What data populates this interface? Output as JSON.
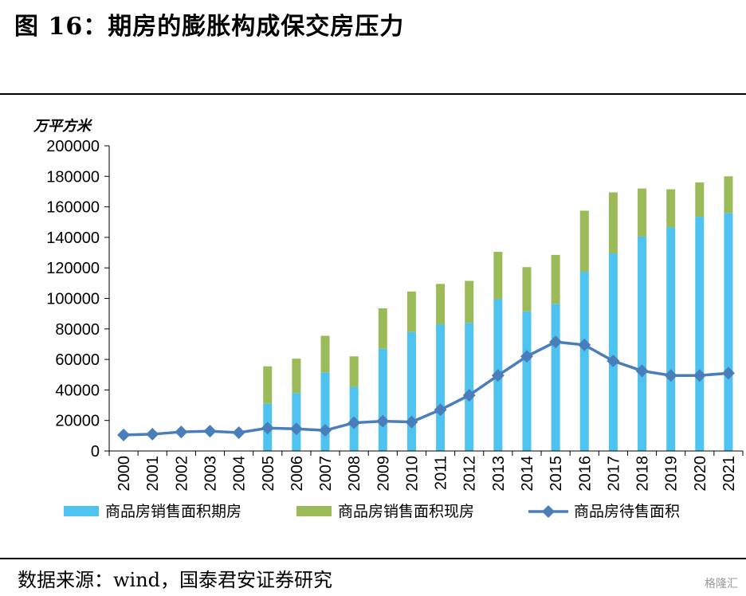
{
  "figure": {
    "title": "图 16：期房的膨胀构成保交房压力",
    "source": "数据来源：wind，国泰君安证券研究",
    "watermark": "格隆汇"
  },
  "colors": {
    "futures": "#4fc3f0",
    "existing": "#9bbb59",
    "inventory": "#4a7ebb"
  },
  "chart_data": {
    "type": "bar",
    "stacked": true,
    "unit": "万平方米",
    "categories": [
      "2000",
      "2001",
      "2002",
      "2003",
      "2004",
      "2005",
      "2006",
      "2007",
      "2008",
      "2009",
      "2010",
      "2011",
      "2012",
      "2013",
      "2014",
      "2015",
      "2016",
      "2017",
      "2018",
      "2019",
      "2020",
      "2021"
    ],
    "ylim": [
      0,
      200000
    ],
    "yticks": [
      0,
      20000,
      40000,
      60000,
      80000,
      100000,
      120000,
      140000,
      160000,
      180000,
      200000
    ],
    "series": [
      {
        "name": "商品房销售面积期房",
        "type": "bar",
        "values": [
          null,
          null,
          null,
          null,
          null,
          31000,
          38000,
          51500,
          42000,
          67000,
          78000,
          83000,
          84000,
          99500,
          91500,
          96500,
          117500,
          129500,
          140500,
          146500,
          153500,
          156000
        ]
      },
      {
        "name": "商品房销售面积现房",
        "type": "bar",
        "values": [
          null,
          null,
          null,
          null,
          null,
          24500,
          22500,
          24000,
          20000,
          26500,
          26500,
          26500,
          27500,
          31000,
          29000,
          32000,
          40000,
          40000,
          31500,
          25000,
          22500,
          24000
        ]
      },
      {
        "name": "商品房待售面积",
        "type": "line",
        "values": [
          10500,
          11000,
          12500,
          13000,
          12000,
          15000,
          14500,
          13500,
          18500,
          19500,
          19000,
          27000,
          36500,
          49500,
          62000,
          71500,
          69500,
          59000,
          52500,
          49500,
          49500,
          51000
        ]
      }
    ],
    "legend_position": "bottom"
  }
}
